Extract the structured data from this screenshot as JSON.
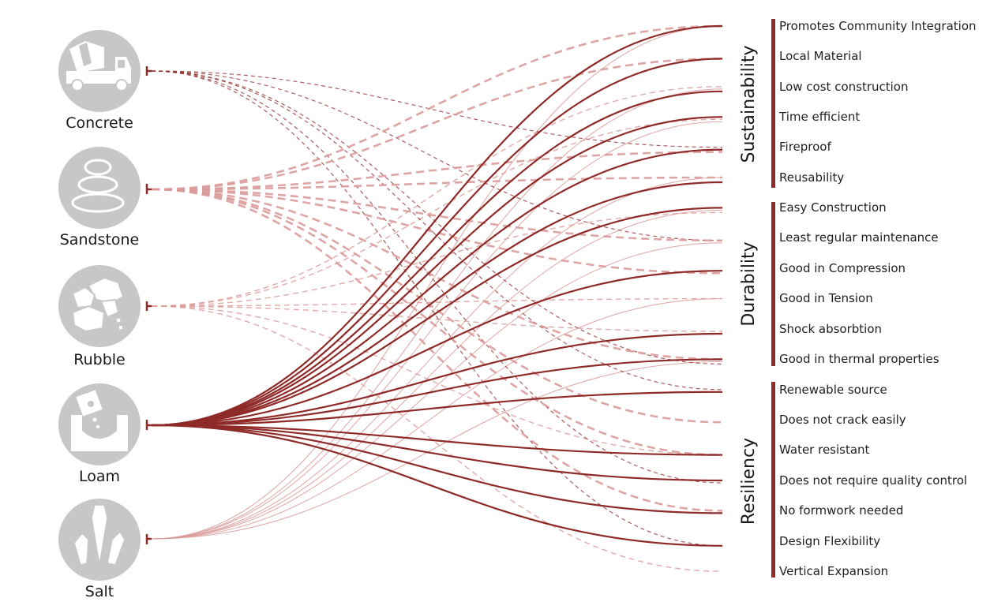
{
  "materials": [
    {
      "key": "concrete",
      "label": "Concrete",
      "icon": "concrete-mixer-truck-icon"
    },
    {
      "key": "sandstone",
      "label": "Sandstone",
      "icon": "stacked-stones-icon"
    },
    {
      "key": "rubble",
      "label": "Rubble",
      "icon": "rubble-rocks-icon"
    },
    {
      "key": "loam",
      "label": "Loam",
      "icon": "loam-pour-icon"
    },
    {
      "key": "salt",
      "label": "Salt",
      "icon": "salt-crystal-icon"
    }
  ],
  "groups": [
    {
      "label": "Sustainability",
      "properties": [
        "Promotes Community Integration",
        "Local Material",
        "Low cost construction",
        "Time efficient",
        "Fireproof",
        "Reusability"
      ]
    },
    {
      "label": "Durability",
      "properties": [
        "Easy Construction",
        "Least regular maintenance",
        "Good in Compression",
        "Good in Tension",
        "Shock absorbtion",
        "Good in thermal properties"
      ]
    },
    {
      "label": "Resiliency",
      "properties": [
        "Renewable source",
        "Does not crack easily",
        "Water resistant",
        "Does not require quality control",
        "No formwork needed",
        "Design Flexibility",
        "Vertical Expansion"
      ]
    }
  ],
  "colors": {
    "strong": "#8e2a28",
    "light": "#d99c9a",
    "medium": "#c98682",
    "circle": "#c7c7c7",
    "bar": "#8e2a28"
  },
  "links": {
    "concrete": {
      "style": "dashed-thin-dark",
      "targets": [
        4,
        7,
        11,
        12,
        15,
        17
      ]
    },
    "sandstone": {
      "style": "dashed-thick",
      "targets": [
        0,
        1,
        4,
        5,
        7,
        8,
        11,
        13,
        14,
        16
      ]
    },
    "rubble": {
      "style": "dashed-light",
      "targets": [
        2,
        3,
        6,
        9,
        10,
        14,
        18
      ]
    },
    "loam": {
      "style": "solid-strong",
      "targets": [
        0,
        1,
        2,
        3,
        4,
        5,
        6,
        8,
        10,
        11,
        12,
        14,
        15,
        16,
        17
      ]
    },
    "salt": {
      "style": "solid-thin-light",
      "targets": [
        0,
        2,
        3,
        5,
        6,
        7,
        9,
        11
      ]
    }
  }
}
